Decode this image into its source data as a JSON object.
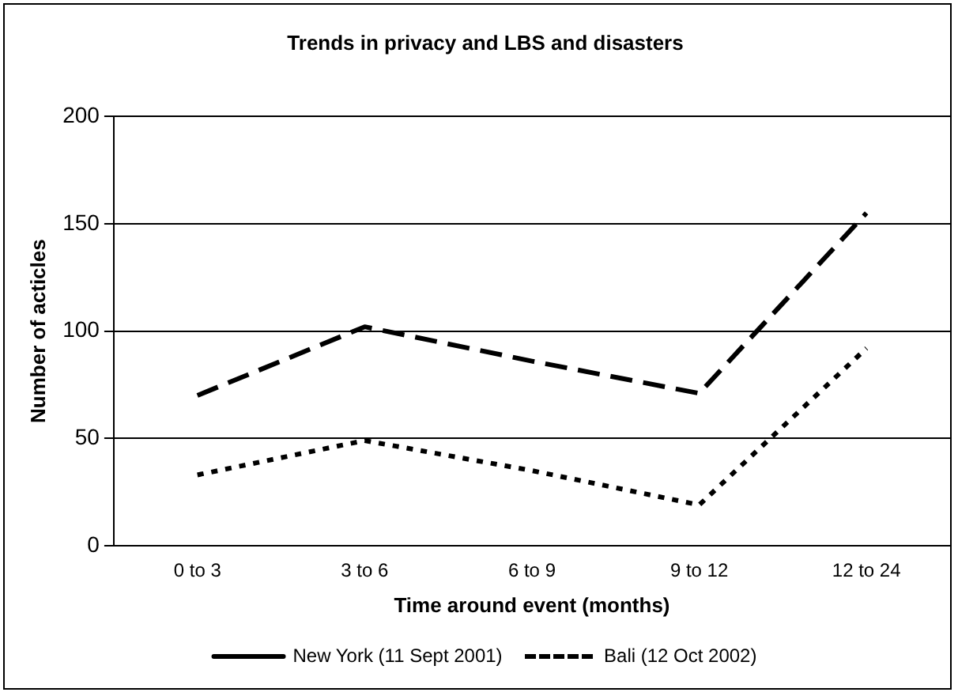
{
  "chart_data": {
    "type": "line",
    "title": "Trends in privacy and LBS and disasters",
    "xlabel": "Time around event (months)",
    "ylabel": "Number of acticles",
    "categories": [
      "0 to 3",
      "3 to 6",
      "6 to 9",
      "9 to 12",
      "12 to 24"
    ],
    "series": [
      {
        "name": "New York (11 Sept 2001)",
        "color": "#000000",
        "line_style": "dashed",
        "values": [
          70,
          102,
          86,
          71,
          155
        ]
      },
      {
        "name": "Bali (12 Oct 2002)",
        "color": "#000000",
        "line_style": "dotted",
        "values": [
          33,
          49,
          35,
          19,
          92
        ]
      }
    ],
    "ylim": [
      0,
      200
    ],
    "yticks": [
      0,
      50,
      100,
      150,
      200
    ],
    "grid": "y",
    "legend": "bottom",
    "marker": "none"
  }
}
